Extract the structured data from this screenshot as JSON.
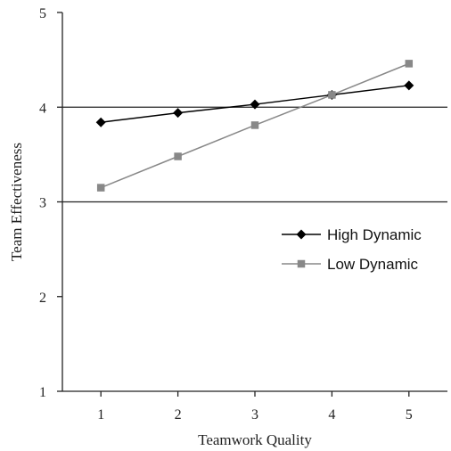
{
  "chart_data": {
    "type": "line",
    "title": "",
    "xlabel": "Teamwork Quality",
    "ylabel": "Team Effectiveness",
    "x": [
      1,
      2,
      3,
      4,
      5
    ],
    "xlim": [
      0.5,
      5.5
    ],
    "ylim": [
      1,
      5
    ],
    "xticks": [
      "1",
      "2",
      "3",
      "4",
      "5"
    ],
    "yticks": [
      "1",
      "2",
      "3",
      "4",
      "5"
    ],
    "grid": "horizontal lines at 3 and 4",
    "legend_position": "right",
    "series": [
      {
        "name": "High Dynamic",
        "marker": "diamond",
        "color": "#000000",
        "values": [
          3.84,
          3.94,
          4.03,
          4.13,
          4.23
        ]
      },
      {
        "name": "Low Dynamic",
        "marker": "square",
        "color": "#888888",
        "values": [
          3.15,
          3.48,
          3.81,
          4.13,
          4.46
        ]
      }
    ]
  }
}
